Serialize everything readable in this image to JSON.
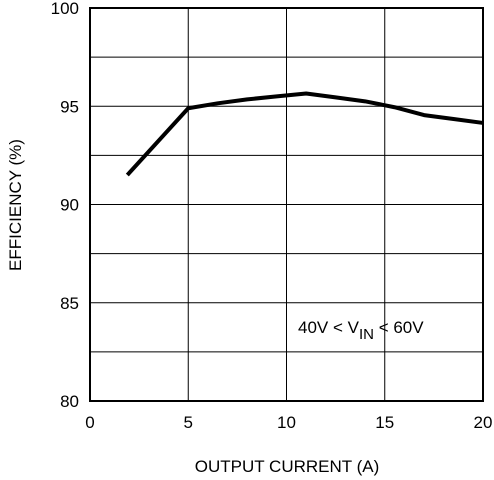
{
  "chart_data": {
    "type": "line",
    "xlabel": "OUTPUT CURRENT (A)",
    "ylabel": "EFFICIENCY (%)",
    "xlim": [
      0,
      20
    ],
    "ylim": [
      80,
      100
    ],
    "xticks": [
      0,
      5,
      10,
      15,
      20
    ],
    "yticks": [
      80,
      85,
      90,
      95,
      100
    ],
    "grid": true,
    "annotation": {
      "prefix": "40V < V",
      "subscript": "IN",
      "suffix": " < 60V"
    },
    "series": [
      {
        "x": [
          1.9,
          5,
          6.5,
          8,
          9.5,
          11,
          12.5,
          14,
          15.5,
          17,
          18.5,
          20
        ],
        "y": [
          91.5,
          94.9,
          95.15,
          95.35,
          95.5,
          95.65,
          95.45,
          95.25,
          94.95,
          94.55,
          94.35,
          94.15
        ]
      }
    ]
  }
}
